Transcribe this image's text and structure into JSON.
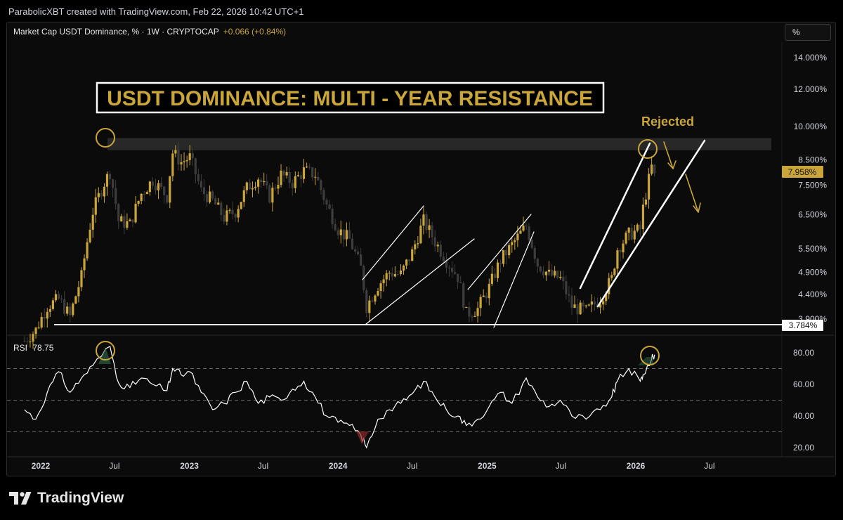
{
  "header": {
    "text": "ParabolicXBT created with TradingView.com, Feb 22, 2026 10:42 UTC+1"
  },
  "symbol": {
    "name": "Market Cap USDT Dominance, % · 1W · CRYPTOCAP",
    "change": "+0.066 (+0.84%)"
  },
  "pct_button": "%",
  "rsi": {
    "label": "RSI",
    "value": "78.75"
  },
  "footer": {
    "logo_text": "TradingView"
  },
  "colors": {
    "up": "#c9a53a",
    "down": "#3d3d3d",
    "accent": "#c9a53a",
    "resistance_zone": "#2b2b2b",
    "rsi_line": "#ffffff",
    "background": "#000000"
  },
  "chart_data": [
    {
      "type": "candlestick",
      "title": "USDT DOMINANCE: MULTI - YEAR RESISTANCE",
      "y_scale": "log",
      "y_ticks": [
        "14.000%",
        "12.000%",
        "10.000%",
        "8.500%",
        "7.500%",
        "6.500%",
        "5.500%",
        "4.900%",
        "4.400%",
        "3.900%"
      ],
      "y_tick_values": [
        14.0,
        12.0,
        10.0,
        8.5,
        7.5,
        6.5,
        5.5,
        4.9,
        4.4,
        3.9
      ],
      "ylim": [
        3.6,
        16.5
      ],
      "x_ticks": [
        "2022",
        "Jul",
        "2023",
        "Jul",
        "2024",
        "Jul",
        "2025",
        "Jul",
        "2026",
        "Jul"
      ],
      "x_tick_dates": [
        "2022-01-01",
        "2022-07-01",
        "2023-01-01",
        "2023-07-01",
        "2024-01-01",
        "2024-07-01",
        "2025-01-01",
        "2025-07-01",
        "2026-01-01",
        "2026-07-01"
      ],
      "current_price_label": "7.958%",
      "support_label": "3.784%",
      "support_value": 3.784,
      "resistance_zone": [
        8.9,
        9.45
      ],
      "annotation": "Rejected",
      "price_path": [
        [
          "2021-11-22",
          3.5
        ],
        [
          "2021-12-20",
          3.7
        ],
        [
          "2022-01-17",
          4.15
        ],
        [
          "2022-02-14",
          4.3
        ],
        [
          "2022-03-14",
          3.95
        ],
        [
          "2022-04-11",
          4.8
        ],
        [
          "2022-05-09",
          6.6
        ],
        [
          "2022-06-06",
          7.6
        ],
        [
          "2022-06-20",
          8.0
        ],
        [
          "2022-07-11",
          6.3
        ],
        [
          "2022-08-08",
          6.2
        ],
        [
          "2022-09-05",
          7.2
        ],
        [
          "2022-10-03",
          7.7
        ],
        [
          "2022-11-07",
          7.1
        ],
        [
          "2022-11-21",
          8.8
        ],
        [
          "2022-12-12",
          8.4
        ],
        [
          "2023-01-02",
          8.6
        ],
        [
          "2023-01-30",
          7.3
        ],
        [
          "2023-02-27",
          6.95
        ],
        [
          "2023-03-27",
          6.4
        ],
        [
          "2023-04-24",
          6.6
        ],
        [
          "2023-05-22",
          7.4
        ],
        [
          "2023-06-19",
          7.8
        ],
        [
          "2023-07-17",
          7.1
        ],
        [
          "2023-08-14",
          7.9
        ],
        [
          "2023-09-11",
          7.6
        ],
        [
          "2023-10-09",
          8.05
        ],
        [
          "2023-11-06",
          7.9
        ],
        [
          "2023-12-04",
          6.8
        ],
        [
          "2024-01-01",
          6.05
        ],
        [
          "2024-01-29",
          5.75
        ],
        [
          "2024-02-26",
          5.0
        ],
        [
          "2024-03-11",
          4.15
        ],
        [
          "2024-04-08",
          4.6
        ],
        [
          "2024-05-06",
          4.9
        ],
        [
          "2024-06-03",
          4.85
        ],
        [
          "2024-07-01",
          5.4
        ],
        [
          "2024-07-29",
          6.3
        ],
        [
          "2024-08-26",
          5.7
        ],
        [
          "2024-09-23",
          5.2
        ],
        [
          "2024-10-21",
          4.8
        ],
        [
          "2024-11-11",
          4.0
        ],
        [
          "2024-12-09",
          4.1
        ],
        [
          "2025-01-06",
          4.55
        ],
        [
          "2025-02-03",
          5.2
        ],
        [
          "2025-03-03",
          5.6
        ],
        [
          "2025-04-07",
          6.15
        ],
        [
          "2025-05-05",
          5.1
        ],
        [
          "2025-06-02",
          4.85
        ],
        [
          "2025-06-30",
          4.75
        ],
        [
          "2025-07-28",
          4.15
        ],
        [
          "2025-09-01",
          4.05
        ],
        [
          "2025-10-06",
          4.3
        ],
        [
          "2025-11-03",
          4.75
        ],
        [
          "2025-11-17",
          5.5
        ],
        [
          "2025-12-15",
          5.9
        ],
        [
          "2026-01-12",
          6.05
        ],
        [
          "2026-01-19",
          6.7
        ],
        [
          "2026-02-09",
          8.2
        ],
        [
          "2026-02-16",
          7.958
        ]
      ]
    },
    {
      "type": "line",
      "name": "RSI",
      "y_ticks": [
        "80.00",
        "60.00",
        "40.00",
        "20.00"
      ],
      "y_tick_values": [
        80,
        60,
        40,
        20
      ],
      "levels": [
        70,
        50,
        30
      ],
      "ylim": [
        12,
        92
      ],
      "series": [
        {
          "name": "RSI",
          "points": [
            [
              "2021-11-22",
              44
            ],
            [
              "2021-12-20",
              38
            ],
            [
              "2022-01-17",
              55
            ],
            [
              "2022-02-14",
              68
            ],
            [
              "2022-03-14",
              55
            ],
            [
              "2022-04-11",
              64
            ],
            [
              "2022-05-09",
              72
            ],
            [
              "2022-06-20",
              84
            ],
            [
              "2022-07-11",
              61
            ],
            [
              "2022-08-08",
              58
            ],
            [
              "2022-09-05",
              64
            ],
            [
              "2022-10-03",
              60
            ],
            [
              "2022-11-07",
              56
            ],
            [
              "2022-11-21",
              70
            ],
            [
              "2022-12-12",
              66
            ],
            [
              "2023-01-02",
              68
            ],
            [
              "2023-01-30",
              55
            ],
            [
              "2023-02-27",
              44
            ],
            [
              "2023-03-27",
              48
            ],
            [
              "2023-04-24",
              55
            ],
            [
              "2023-05-22",
              62
            ],
            [
              "2023-06-19",
              48
            ],
            [
              "2023-07-17",
              52
            ],
            [
              "2023-08-14",
              50
            ],
            [
              "2023-09-11",
              57
            ],
            [
              "2023-10-09",
              62
            ],
            [
              "2023-11-06",
              52
            ],
            [
              "2023-12-04",
              40
            ],
            [
              "2024-01-01",
              36
            ],
            [
              "2024-01-29",
              34
            ],
            [
              "2024-02-26",
              28
            ],
            [
              "2024-03-11",
              20
            ],
            [
              "2024-04-08",
              38
            ],
            [
              "2024-05-06",
              44
            ],
            [
              "2024-06-03",
              48
            ],
            [
              "2024-07-01",
              54
            ],
            [
              "2024-07-29",
              62
            ],
            [
              "2024-08-26",
              52
            ],
            [
              "2024-09-23",
              44
            ],
            [
              "2024-10-21",
              40
            ],
            [
              "2024-11-11",
              34
            ],
            [
              "2024-12-09",
              38
            ],
            [
              "2025-01-06",
              46
            ],
            [
              "2025-02-03",
              55
            ],
            [
              "2025-03-03",
              48
            ],
            [
              "2025-04-07",
              64
            ],
            [
              "2025-05-05",
              52
            ],
            [
              "2025-06-02",
              46
            ],
            [
              "2025-06-30",
              50
            ],
            [
              "2025-07-28",
              40
            ],
            [
              "2025-09-01",
              38
            ],
            [
              "2025-10-06",
              44
            ],
            [
              "2025-11-03",
              52
            ],
            [
              "2025-11-17",
              62
            ],
            [
              "2025-12-15",
              70
            ],
            [
              "2026-01-12",
              62
            ],
            [
              "2026-01-19",
              66
            ],
            [
              "2026-02-09",
              76
            ],
            [
              "2026-02-16",
              78.75
            ]
          ]
        }
      ]
    }
  ]
}
